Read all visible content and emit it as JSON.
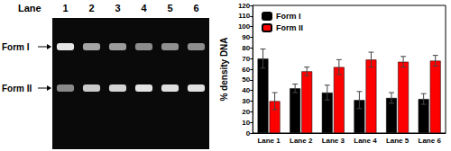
{
  "gel": {
    "lane_title": "Lane",
    "lanes": [
      "1",
      "2",
      "3",
      "4",
      "5",
      "6"
    ],
    "bands": [
      "Form I",
      "Form II"
    ]
  },
  "chart_data": {
    "type": "bar",
    "y_label": "% density DNA",
    "categories": [
      "Lane 1",
      "Lane 2",
      "Lane 3",
      "Lane 4",
      "Lane 5",
      "Lane 6"
    ],
    "series": [
      {
        "name": "Form I",
        "color": "#000000",
        "values": [
          70,
          42,
          38,
          31,
          33,
          32
        ],
        "errors": [
          9,
          4,
          7,
          8,
          5,
          5
        ]
      },
      {
        "name": "Form II",
        "color": "#ff0000",
        "values": [
          30,
          58,
          62,
          69,
          67,
          68
        ],
        "errors": [
          8,
          4,
          7,
          7,
          5,
          5
        ]
      }
    ],
    "ylim": [
      0,
      120
    ],
    "yticks": [
      0,
      10,
      20,
      30,
      40,
      50,
      60,
      70,
      80,
      90,
      100,
      110,
      120
    ],
    "grid": false,
    "legend": "upper left"
  }
}
